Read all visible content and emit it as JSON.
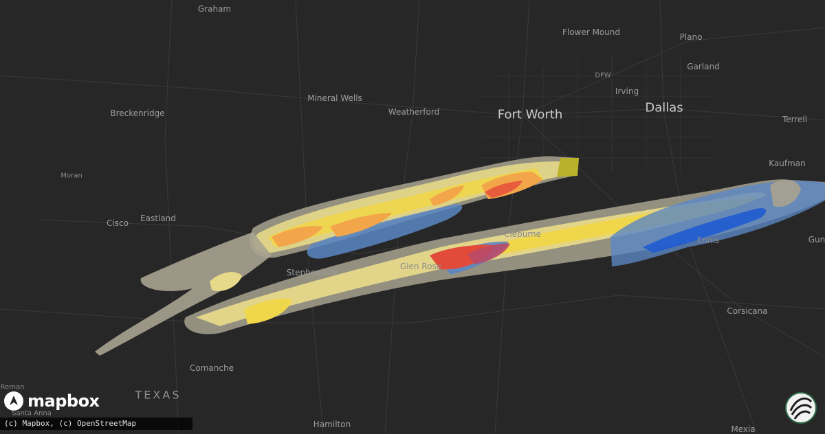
{
  "map": {
    "places": [
      {
        "name": "Graham",
        "cls": ""
      },
      {
        "name": "Flower Mound",
        "cls": ""
      },
      {
        "name": "Plano",
        "cls": ""
      },
      {
        "name": "DFW",
        "cls": "tiny"
      },
      {
        "name": "Garland",
        "cls": ""
      },
      {
        "name": "Irving",
        "cls": ""
      },
      {
        "name": "Mineral Wells",
        "cls": ""
      },
      {
        "name": "Breckenridge",
        "cls": ""
      },
      {
        "name": "Weatherford",
        "cls": ""
      },
      {
        "name": "Fort Worth",
        "cls": "big"
      },
      {
        "name": "Dallas",
        "cls": "big"
      },
      {
        "name": "Terrell",
        "cls": ""
      },
      {
        "name": "Kaufman",
        "cls": ""
      },
      {
        "name": "Moran",
        "cls": "tiny"
      },
      {
        "name": "Cisco",
        "cls": ""
      },
      {
        "name": "Eastland",
        "cls": ""
      },
      {
        "name": "Cleburne",
        "cls": "dim"
      },
      {
        "name": "Ennis",
        "cls": "dim"
      },
      {
        "name": "Gun",
        "cls": ""
      },
      {
        "name": "Stephenville",
        "cls": ""
      },
      {
        "name": "Glen Rose",
        "cls": "dim"
      },
      {
        "name": "Corsicana",
        "cls": ""
      },
      {
        "name": "Comanche",
        "cls": ""
      },
      {
        "name": "TEXAS",
        "cls": "state"
      },
      {
        "name": "Reman",
        "cls": "tiny"
      },
      {
        "name": "Santa Anna",
        "cls": "tiny"
      },
      {
        "name": "Hamilton",
        "cls": ""
      },
      {
        "name": "Mexia",
        "cls": ""
      }
    ]
  },
  "brand": {
    "logo_text": "mapbox",
    "attribution": "(c) Mapbox, (c) OpenStreetMap"
  },
  "colors": {
    "background": "#272727",
    "swath_gray": "#a8a390",
    "swath_light_yellow": "#e6d98a",
    "swath_yellow": "#f0d64a",
    "swath_orange": "#f3a54a",
    "swath_red": "#e24a3a",
    "swath_blue": "#5b87c4",
    "swath_deep_blue": "#1f5bd0",
    "swath_olive": "#b9b12a"
  }
}
